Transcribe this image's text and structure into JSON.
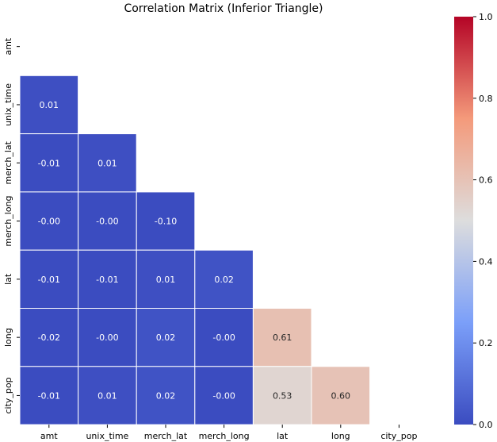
{
  "chart_data": {
    "type": "heatmap",
    "title": "Correlation Matrix (Inferior Triangle)",
    "variables": [
      "amt",
      "unix_time",
      "merch_lat",
      "merch_long",
      "lat",
      "long",
      "city_pop"
    ],
    "mask": "upper-triangle-and-diagonal",
    "values": [
      [
        null,
        null,
        null,
        null,
        null,
        null,
        null
      ],
      [
        0.01,
        null,
        null,
        null,
        null,
        null,
        null
      ],
      [
        -0.01,
        0.01,
        null,
        null,
        null,
        null,
        null
      ],
      [
        -0.0,
        -0.0,
        -0.1,
        null,
        null,
        null,
        null
      ],
      [
        -0.01,
        -0.01,
        0.01,
        0.02,
        null,
        null,
        null
      ],
      [
        -0.02,
        -0.0,
        0.02,
        -0.0,
        0.61,
        null,
        null
      ],
      [
        -0.01,
        0.01,
        0.02,
        -0.0,
        0.53,
        0.6,
        null
      ]
    ],
    "value_labels": [
      [
        null,
        null,
        null,
        null,
        null,
        null,
        null
      ],
      [
        "0.01",
        null,
        null,
        null,
        null,
        null,
        null
      ],
      [
        "-0.01",
        "0.01",
        null,
        null,
        null,
        null,
        null
      ],
      [
        "-0.00",
        "-0.00",
        "-0.10",
        null,
        null,
        null,
        null
      ],
      [
        "-0.01",
        "-0.01",
        "0.01",
        "0.02",
        null,
        null,
        null
      ],
      [
        "-0.02",
        "-0.00",
        "0.02",
        "-0.00",
        "0.61",
        null,
        null
      ],
      [
        "-0.01",
        "0.01",
        "0.02",
        "-0.00",
        "0.53",
        "0.60",
        null
      ]
    ],
    "colorbar": {
      "colormap": "coolwarm",
      "vmin": 0.0,
      "vmax": 1.0,
      "ticks": [
        0.0,
        0.2,
        0.4,
        0.6,
        0.8,
        1.0
      ],
      "tick_labels": [
        "0.0",
        "0.2",
        "0.4",
        "0.6",
        "0.8",
        "1.0"
      ]
    }
  }
}
